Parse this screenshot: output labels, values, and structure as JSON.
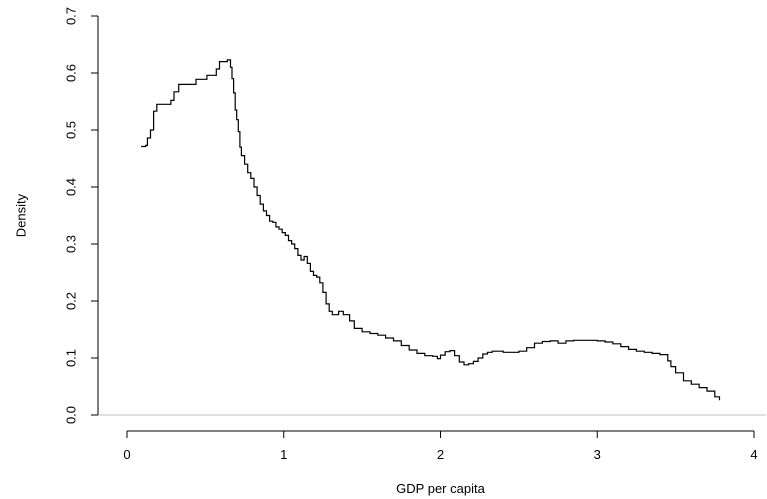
{
  "chart_data": {
    "type": "line",
    "title": "",
    "xlabel": "GDP per capita",
    "ylabel": "Density",
    "xlim": [
      0,
      4
    ],
    "ylim": [
      0,
      0.7
    ],
    "x_ticks": [
      0,
      1,
      2,
      3,
      4
    ],
    "x_tick_labels": [
      "0",
      "1",
      "2",
      "3",
      "4"
    ],
    "y_ticks": [
      0.0,
      0.1,
      0.2,
      0.3,
      0.4,
      0.5,
      0.6,
      0.7
    ],
    "y_tick_labels": [
      "0.0",
      "0.1",
      "0.2",
      "0.3",
      "0.4",
      "0.5",
      "0.6",
      "0.7"
    ],
    "grid": false,
    "legend": "none",
    "line_color": "#000000",
    "axis_color": "#000000",
    "baseline_color": "#bfbfbf",
    "series": [
      {
        "x": [
          0.09,
          0.12,
          0.13,
          0.15,
          0.17,
          0.19,
          0.22,
          0.25,
          0.28,
          0.3,
          0.33,
          0.36,
          0.4,
          0.44,
          0.48,
          0.51,
          0.54,
          0.57,
          0.59,
          0.62,
          0.64,
          0.66,
          0.67,
          0.68,
          0.69,
          0.7,
          0.71,
          0.72,
          0.73,
          0.75,
          0.77,
          0.79,
          0.81,
          0.83,
          0.85,
          0.87,
          0.89,
          0.91,
          0.93,
          0.95,
          0.97,
          0.99,
          1.01,
          1.03,
          1.05,
          1.07,
          1.09,
          1.11,
          1.13,
          1.15,
          1.17,
          1.19,
          1.21,
          1.23,
          1.25,
          1.27,
          1.29,
          1.31,
          1.33,
          1.35,
          1.38,
          1.42,
          1.45,
          1.5,
          1.55,
          1.6,
          1.65,
          1.7,
          1.75,
          1.8,
          1.85,
          1.9,
          1.95,
          1.98,
          2.0,
          2.03,
          2.06,
          2.09,
          2.12,
          2.15,
          2.18,
          2.21,
          2.24,
          2.27,
          2.3,
          2.33,
          2.37,
          2.4,
          2.45,
          2.5,
          2.55,
          2.6,
          2.65,
          2.7,
          2.75,
          2.8,
          2.85,
          2.9,
          2.95,
          3.0,
          3.05,
          3.1,
          3.15,
          3.2,
          3.25,
          3.3,
          3.35,
          3.4,
          3.45,
          3.47,
          3.5,
          3.55,
          3.6,
          3.65,
          3.7,
          3.75,
          3.78
        ],
        "values": [
          0.471,
          0.473,
          0.486,
          0.5,
          0.533,
          0.545,
          0.545,
          0.545,
          0.552,
          0.567,
          0.58,
          0.58,
          0.58,
          0.589,
          0.589,
          0.596,
          0.596,
          0.607,
          0.62,
          0.62,
          0.623,
          0.61,
          0.59,
          0.565,
          0.535,
          0.518,
          0.497,
          0.47,
          0.455,
          0.44,
          0.425,
          0.415,
          0.4,
          0.385,
          0.37,
          0.358,
          0.35,
          0.34,
          0.338,
          0.33,
          0.326,
          0.32,
          0.315,
          0.306,
          0.3,
          0.292,
          0.28,
          0.272,
          0.278,
          0.266,
          0.252,
          0.245,
          0.242,
          0.232,
          0.215,
          0.195,
          0.182,
          0.176,
          0.176,
          0.182,
          0.176,
          0.165,
          0.152,
          0.146,
          0.143,
          0.14,
          0.135,
          0.13,
          0.122,
          0.114,
          0.108,
          0.104,
          0.103,
          0.099,
          0.105,
          0.111,
          0.113,
          0.104,
          0.093,
          0.088,
          0.09,
          0.094,
          0.1,
          0.107,
          0.11,
          0.112,
          0.112,
          0.11,
          0.11,
          0.112,
          0.118,
          0.126,
          0.129,
          0.13,
          0.126,
          0.13,
          0.131,
          0.131,
          0.131,
          0.13,
          0.128,
          0.125,
          0.12,
          0.115,
          0.112,
          0.11,
          0.108,
          0.106,
          0.095,
          0.085,
          0.074,
          0.06,
          0.054,
          0.048,
          0.042,
          0.032,
          0.026
        ]
      }
    ]
  }
}
